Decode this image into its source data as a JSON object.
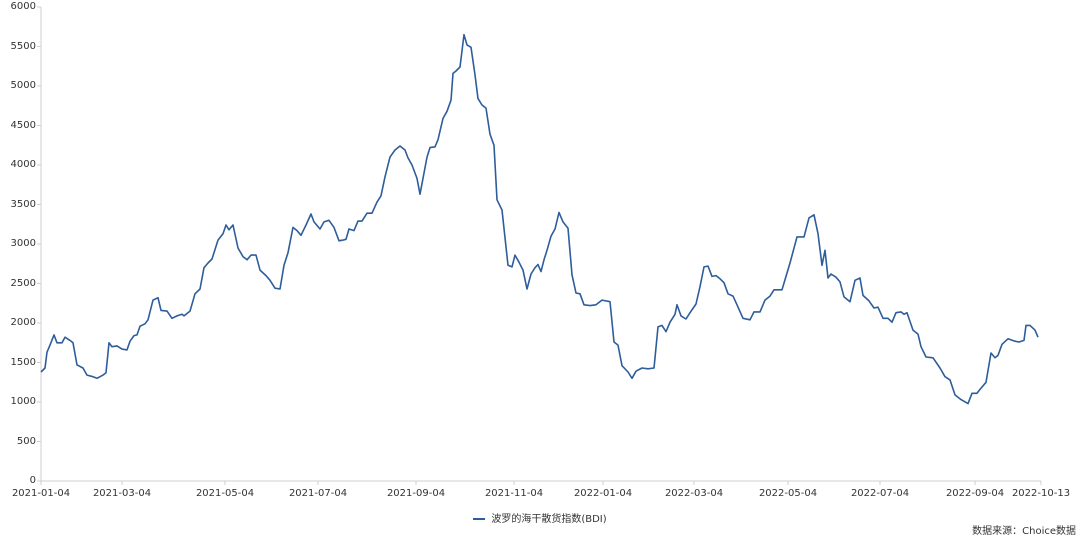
{
  "chart_data": {
    "type": "line",
    "title": "",
    "xlabel": "",
    "ylabel": "",
    "ylim": [
      0,
      6000
    ],
    "yticks": [
      "0",
      "500",
      "1000",
      "1500",
      "2000",
      "2500",
      "3000",
      "3500",
      "4000",
      "4500",
      "5000",
      "5500",
      "6000"
    ],
    "xtick_labels": [
      "2021-01-04",
      "2021-03-04",
      "2021-05-04",
      "2021-07-04",
      "2021-09-04",
      "2021-11-04",
      "2022-01-04",
      "2022-03-04",
      "2022-05-04",
      "2022-07-04",
      "2022-09-04",
      "2022-10-13"
    ],
    "xtick_pos": [
      0.0,
      0.081,
      0.184,
      0.277,
      0.375,
      0.473,
      0.562,
      0.653,
      0.747,
      0.839,
      0.934,
      1.0
    ],
    "grid": false,
    "legend_position": "bottom",
    "line_color": "#2e5d9b",
    "series": [
      {
        "name": "波罗的海干散货指数(BDI)",
        "x_frac": [
          0,
          0.004,
          0.006,
          0.009,
          0.013,
          0.016,
          0.021,
          0.024,
          0.029,
          0.032,
          0.036,
          0.042,
          0.046,
          0.052,
          0.056,
          0.062,
          0.065,
          0.068,
          0.071,
          0.076,
          0.081,
          0.086,
          0.089,
          0.093,
          0.096,
          0.099,
          0.104,
          0.107,
          0.112,
          0.117,
          0.12,
          0.126,
          0.131,
          0.136,
          0.141,
          0.143,
          0.149,
          0.154,
          0.159,
          0.163,
          0.167,
          0.171,
          0.177,
          0.182,
          0.185,
          0.188,
          0.192,
          0.197,
          0.202,
          0.206,
          0.21,
          0.215,
          0.219,
          0.225,
          0.229,
          0.234,
          0.239,
          0.243,
          0.247,
          0.252,
          0.256,
          0.26,
          0.265,
          0.27,
          0.273,
          0.279,
          0.283,
          0.288,
          0.293,
          0.298,
          0.302,
          0.305,
          0.308,
          0.313,
          0.317,
          0.321,
          0.326,
          0.331,
          0.336,
          0.34,
          0.344,
          0.349,
          0.354,
          0.359,
          0.364,
          0.367,
          0.371,
          0.376,
          0.379,
          0.382,
          0.386,
          0.389,
          0.394,
          0.397,
          0.402,
          0.406,
          0.41,
          0.412,
          0.415,
          0.419,
          0.423,
          0.426,
          0.43,
          0.434,
          0.437,
          0.441,
          0.445,
          0.449,
          0.453,
          0.456,
          0.461,
          0.467,
          0.471,
          0.474,
          0.478,
          0.482,
          0.486,
          0.49,
          0.494,
          0.497,
          0.5,
          0.503,
          0.506,
          0.51,
          0.514,
          0.518,
          0.522,
          0.527,
          0.531,
          0.535,
          0.539,
          0.543,
          0.549,
          0.555,
          0.561,
          0.569,
          0.573,
          0.577,
          0.581,
          0.587,
          0.591,
          0.595,
          0.601,
          0.607,
          0.613,
          0.617,
          0.621,
          0.625,
          0.629,
          0.634,
          0.636,
          0.64,
          0.645,
          0.649,
          0.655,
          0.659,
          0.663,
          0.667,
          0.671,
          0.675,
          0.679,
          0.683,
          0.687,
          0.692,
          0.696,
          0.702,
          0.709,
          0.713,
          0.719,
          0.724,
          0.729,
          0.733,
          0.741,
          0.745,
          0.749,
          0.756,
          0.763,
          0.768,
          0.773,
          0.777,
          0.781,
          0.784,
          0.787,
          0.79,
          0.795,
          0.799,
          0.803,
          0.809,
          0.814,
          0.819,
          0.822,
          0.828,
          0.833,
          0.837,
          0.842,
          0.847,
          0.851,
          0.855,
          0.86,
          0.863,
          0.866,
          0.872,
          0.877,
          0.88,
          0.885,
          0.892,
          0.899,
          0.904,
          0.909,
          0.914,
          0.92,
          0.927,
          0.931,
          0.936,
          0.939,
          0.945,
          0.95,
          0.954,
          0.957,
          0.961,
          0.967,
          0.974,
          0.978,
          0.983,
          0.985,
          0.989,
          0.994,
          0.997
        ],
        "values": [
          1380,
          1430,
          1630,
          1720,
          1850,
          1750,
          1750,
          1820,
          1780,
          1750,
          1470,
          1430,
          1340,
          1320,
          1300,
          1340,
          1370,
          1750,
          1700,
          1710,
          1670,
          1660,
          1770,
          1840,
          1850,
          1960,
          1990,
          2040,
          2290,
          2320,
          2160,
          2150,
          2060,
          2090,
          2110,
          2090,
          2150,
          2370,
          2430,
          2700,
          2760,
          2810,
          3050,
          3130,
          3240,
          3180,
          3240,
          2950,
          2840,
          2800,
          2860,
          2860,
          2670,
          2600,
          2540,
          2440,
          2430,
          2730,
          2890,
          3210,
          3170,
          3110,
          3240,
          3380,
          3280,
          3190,
          3280,
          3300,
          3210,
          3040,
          3050,
          3060,
          3190,
          3170,
          3290,
          3290,
          3390,
          3390,
          3530,
          3610,
          3850,
          4100,
          4190,
          4240,
          4190,
          4090,
          4000,
          3830,
          3630,
          3830,
          4100,
          4220,
          4230,
          4320,
          4590,
          4680,
          4820,
          5160,
          5190,
          5240,
          5650,
          5520,
          5490,
          5140,
          4840,
          4760,
          4720,
          4390,
          4250,
          3560,
          3430,
          2730,
          2710,
          2860,
          2770,
          2670,
          2430,
          2620,
          2700,
          2740,
          2650,
          2800,
          2920,
          3100,
          3190,
          3400,
          3280,
          3200,
          2610,
          2380,
          2370,
          2230,
          2220,
          2230,
          2290,
          2270,
          1760,
          1720,
          1460,
          1380,
          1300,
          1390,
          1430,
          1420,
          1430,
          1950,
          1970,
          1890,
          2010,
          2110,
          2230,
          2090,
          2050,
          2130,
          2240,
          2460,
          2710,
          2720,
          2590,
          2600,
          2560,
          2510,
          2370,
          2340,
          2230,
          2060,
          2040,
          2140,
          2140,
          2290,
          2340,
          2420,
          2420,
          2590,
          2760,
          3090,
          3090,
          3330,
          3370,
          3130,
          2730,
          2920,
          2570,
          2620,
          2580,
          2520,
          2330,
          2270,
          2540,
          2570,
          2350,
          2280,
          2190,
          2200,
          2060,
          2060,
          2010,
          2130,
          2140,
          2110,
          2130,
          1910,
          1860,
          1700,
          1570,
          1560,
          1430,
          1320,
          1280,
          1090,
          1030,
          980,
          1110,
          1110,
          1160,
          1250,
          1620,
          1560,
          1590,
          1730,
          1800,
          1770,
          1760,
          1780,
          1970,
          1970,
          1910,
          1820
        ]
      }
    ]
  },
  "legend": {
    "label": "波罗的海干散货指数(BDI)"
  },
  "source": {
    "text": "数据来源：Choice数据"
  }
}
